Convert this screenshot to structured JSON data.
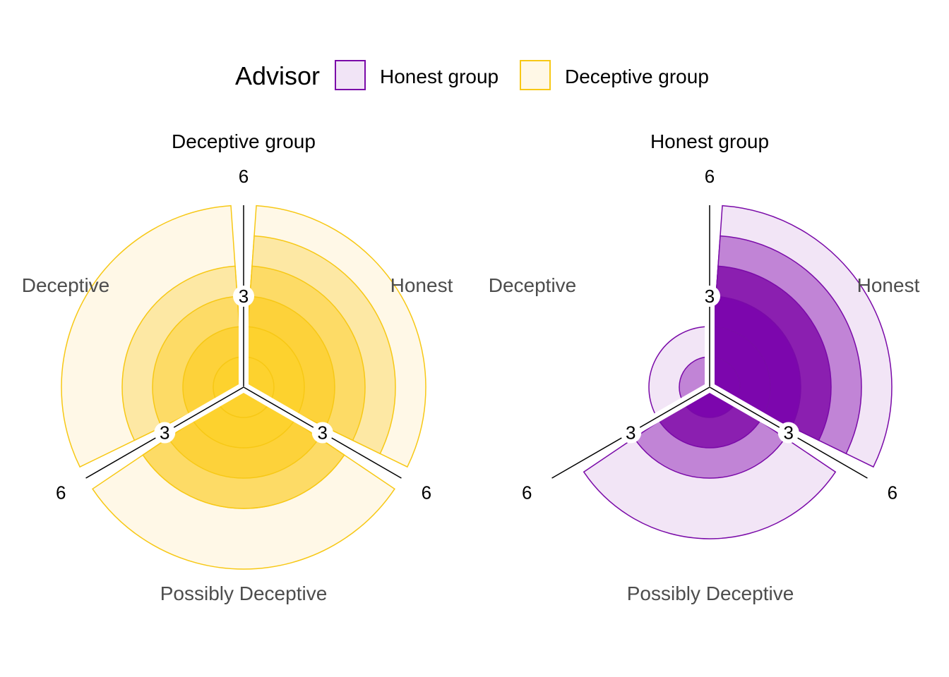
{
  "chart_data": {
    "type": "rose",
    "legend": {
      "title": "Advisor",
      "position": "top",
      "entries": [
        {
          "label": "Honest group",
          "fill": "#f1e4f6",
          "stroke": "#7a0aa8"
        },
        {
          "label": "Deceptive group",
          "fill": "#fff8e6",
          "stroke": "#f7c815"
        }
      ]
    },
    "radial_axis": {
      "max": 6,
      "ticks": [
        3,
        6
      ],
      "tick_labels": [
        "3",
        "6"
      ]
    },
    "categories": [
      "Honest",
      "Possibly Deceptive",
      "Deceptive"
    ],
    "panels": [
      {
        "title": "Deceptive group",
        "stroke": "#f7c815",
        "fills": [
          "#fff8e7",
          "#fde8a4",
          "#fddb66",
          "#fdd23a",
          "#fdd22e",
          "#fdd22e"
        ],
        "layers": [
          {
            "level": 1,
            "values": [
              6,
              6,
              6
            ]
          },
          {
            "level": 2,
            "values": [
              5,
              4,
              4
            ]
          },
          {
            "level": 3,
            "values": [
              4,
              4,
              3
            ]
          },
          {
            "level": 4,
            "values": [
              3,
              3,
              2
            ]
          },
          {
            "level": 5,
            "values": [
              2,
              2,
              1
            ]
          },
          {
            "level": 6,
            "values": [
              1,
              1,
              1
            ]
          }
        ],
        "tick_labels": {
          "Honest": [
            "3",
            "6"
          ],
          "Possibly Deceptive": [
            "3",
            "6"
          ],
          "Deceptive": [
            "3",
            "6"
          ]
        }
      },
      {
        "title": "Honest group",
        "stroke": "#7a0aa8",
        "fills": [
          "#f2e5f6",
          "#c184d6",
          "#8b1fb0",
          "#7c06ad",
          "#7c06ad",
          "#7c06ad"
        ],
        "layers": [
          {
            "level": 1,
            "values": [
              6,
              5,
              2
            ]
          },
          {
            "level": 2,
            "values": [
              5,
              3,
              1
            ]
          },
          {
            "level": 3,
            "values": [
              4,
              2,
              0
            ]
          },
          {
            "level": 4,
            "values": [
              3,
              1,
              0
            ]
          },
          {
            "level": 5,
            "values": [
              2,
              0,
              0
            ]
          },
          {
            "level": 6,
            "values": [
              1,
              0,
              0
            ]
          }
        ],
        "tick_labels": {
          "Honest": [
            "3",
            "6"
          ],
          "Possibly Deceptive": [
            "3",
            "6"
          ],
          "Deceptive": [
            "3",
            "6"
          ]
        }
      }
    ]
  }
}
